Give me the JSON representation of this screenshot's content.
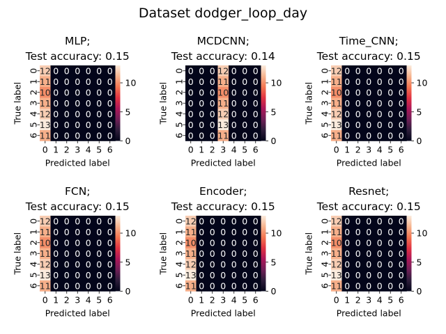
{
  "figure": {
    "title": "Dataset dodger_loop_day"
  },
  "colormap": {
    "name": "rocket",
    "stops": [
      "#03051a",
      "#2e1e3b",
      "#701f57",
      "#ad1759",
      "#e13342",
      "#f37651",
      "#f6b48f",
      "#faebdd"
    ]
  },
  "chart_data": [
    {
      "type": "heatmap",
      "title_lines": [
        "MLP;",
        "Test accuracy: 0.15"
      ],
      "xlabel": "Predicted label",
      "ylabel": "True label",
      "x_ticks": [
        "0",
        "1",
        "2",
        "3",
        "4",
        "5",
        "6"
      ],
      "y_ticks": [
        "0",
        "1",
        "2",
        "3",
        "4",
        "5",
        "6"
      ],
      "matrix": [
        [
          12,
          0,
          0,
          0,
          0,
          0,
          0
        ],
        [
          11,
          0,
          0,
          0,
          0,
          0,
          0
        ],
        [
          10,
          0,
          0,
          0,
          0,
          0,
          0
        ],
        [
          11,
          0,
          0,
          0,
          0,
          0,
          0
        ],
        [
          12,
          0,
          0,
          0,
          0,
          0,
          0
        ],
        [
          13,
          0,
          0,
          0,
          0,
          0,
          0
        ],
        [
          11,
          0,
          0,
          0,
          0,
          0,
          0
        ]
      ],
      "colorbar": {
        "range": [
          0,
          13
        ],
        "ticks": [
          "0",
          "5",
          "10"
        ]
      }
    },
    {
      "type": "heatmap",
      "title_lines": [
        "MCDCNN;",
        "Test accuracy: 0.14"
      ],
      "xlabel": "Predicted label",
      "ylabel": "True label",
      "x_ticks": [
        "0",
        "1",
        "2",
        "3",
        "4",
        "5",
        "6"
      ],
      "y_ticks": [
        "0",
        "1",
        "2",
        "3",
        "4",
        "5",
        "6"
      ],
      "matrix": [
        [
          0,
          0,
          0,
          12,
          0,
          0,
          0
        ],
        [
          0,
          0,
          0,
          11,
          0,
          0,
          0
        ],
        [
          0,
          0,
          0,
          10,
          0,
          0,
          0
        ],
        [
          0,
          0,
          0,
          11,
          0,
          0,
          0
        ],
        [
          0,
          0,
          0,
          12,
          0,
          0,
          0
        ],
        [
          0,
          0,
          0,
          13,
          0,
          0,
          0
        ],
        [
          0,
          0,
          0,
          11,
          0,
          0,
          0
        ]
      ],
      "colorbar": {
        "range": [
          0,
          13
        ],
        "ticks": [
          "0",
          "5",
          "10"
        ]
      }
    },
    {
      "type": "heatmap",
      "title_lines": [
        "Time_CNN;",
        "Test accuracy: 0.15"
      ],
      "xlabel": "Predicted label",
      "ylabel": "True label",
      "x_ticks": [
        "0",
        "1",
        "2",
        "3",
        "4",
        "5",
        "6"
      ],
      "y_ticks": [
        "0",
        "1",
        "2",
        "3",
        "4",
        "5",
        "6"
      ],
      "matrix": [
        [
          12,
          0,
          0,
          0,
          0,
          0,
          0
        ],
        [
          11,
          0,
          0,
          0,
          0,
          0,
          0
        ],
        [
          10,
          0,
          0,
          0,
          0,
          0,
          0
        ],
        [
          11,
          0,
          0,
          0,
          0,
          0,
          0
        ],
        [
          12,
          0,
          0,
          0,
          0,
          0,
          0
        ],
        [
          13,
          0,
          0,
          0,
          0,
          0,
          0
        ],
        [
          11,
          0,
          0,
          0,
          0,
          0,
          0
        ]
      ],
      "colorbar": {
        "range": [
          0,
          13
        ],
        "ticks": [
          "0",
          "5",
          "10"
        ]
      }
    },
    {
      "type": "heatmap",
      "title_lines": [
        "FCN;",
        "Test accuracy: 0.15"
      ],
      "xlabel": "Predicted label",
      "ylabel": "True label",
      "x_ticks": [
        "0",
        "1",
        "2",
        "3",
        "4",
        "5",
        "6"
      ],
      "y_ticks": [
        "0",
        "1",
        "2",
        "3",
        "4",
        "5",
        "6"
      ],
      "matrix": [
        [
          12,
          0,
          0,
          0,
          0,
          0,
          0
        ],
        [
          11,
          0,
          0,
          0,
          0,
          0,
          0
        ],
        [
          10,
          0,
          0,
          0,
          0,
          0,
          0
        ],
        [
          11,
          0,
          0,
          0,
          0,
          0,
          0
        ],
        [
          12,
          0,
          0,
          0,
          0,
          0,
          0
        ],
        [
          13,
          0,
          0,
          0,
          0,
          0,
          0
        ],
        [
          11,
          0,
          0,
          0,
          0,
          0,
          0
        ]
      ],
      "colorbar": {
        "range": [
          0,
          13
        ],
        "ticks": [
          "0",
          "5",
          "10"
        ]
      }
    },
    {
      "type": "heatmap",
      "title_lines": [
        "Encoder;",
        "Test accuracy: 0.15"
      ],
      "xlabel": "Predicted label",
      "ylabel": "True label",
      "x_ticks": [
        "0",
        "1",
        "2",
        "3",
        "4",
        "5",
        "6"
      ],
      "y_ticks": [
        "0",
        "1",
        "2",
        "3",
        "4",
        "5",
        "6"
      ],
      "matrix": [
        [
          12,
          0,
          0,
          0,
          0,
          0,
          0
        ],
        [
          11,
          0,
          0,
          0,
          0,
          0,
          0
        ],
        [
          10,
          0,
          0,
          0,
          0,
          0,
          0
        ],
        [
          11,
          0,
          0,
          0,
          0,
          0,
          0
        ],
        [
          12,
          0,
          0,
          0,
          0,
          0,
          0
        ],
        [
          13,
          0,
          0,
          0,
          0,
          0,
          0
        ],
        [
          11,
          0,
          0,
          0,
          0,
          0,
          0
        ]
      ],
      "colorbar": {
        "range": [
          0,
          13
        ],
        "ticks": [
          "0",
          "5",
          "10"
        ]
      }
    },
    {
      "type": "heatmap",
      "title_lines": [
        "Resnet;",
        "Test accuracy: 0.15"
      ],
      "xlabel": "Predicted label",
      "ylabel": "True label",
      "x_ticks": [
        "0",
        "1",
        "2",
        "3",
        "4",
        "5",
        "6"
      ],
      "y_ticks": [
        "0",
        "1",
        "2",
        "3",
        "4",
        "5",
        "6"
      ],
      "matrix": [
        [
          12,
          0,
          0,
          0,
          0,
          0,
          0
        ],
        [
          11,
          0,
          0,
          0,
          0,
          0,
          0
        ],
        [
          10,
          0,
          0,
          0,
          0,
          0,
          0
        ],
        [
          11,
          0,
          0,
          0,
          0,
          0,
          0
        ],
        [
          12,
          0,
          0,
          0,
          0,
          0,
          0
        ],
        [
          13,
          0,
          0,
          0,
          0,
          0,
          0
        ],
        [
          11,
          0,
          0,
          0,
          0,
          0,
          0
        ]
      ],
      "colorbar": {
        "range": [
          0,
          13
        ],
        "ticks": [
          "0",
          "5",
          "10"
        ]
      }
    }
  ]
}
